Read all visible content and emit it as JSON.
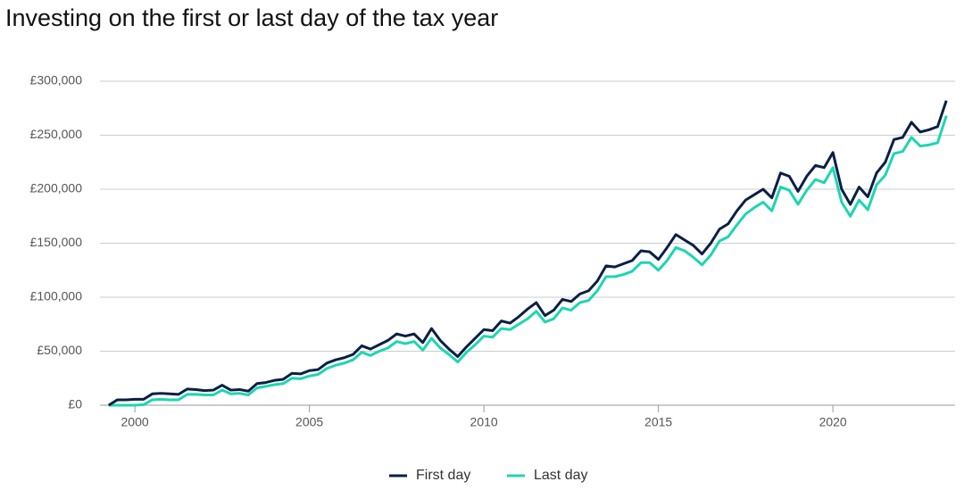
{
  "chart_data": {
    "type": "line",
    "title": "Investing on the first or last day of the tax year",
    "x": [
      1999.25,
      1999.5,
      1999.75,
      2000,
      2000.25,
      2000.5,
      2000.75,
      2001,
      2001.25,
      2001.5,
      2001.75,
      2002,
      2002.25,
      2002.5,
      2002.75,
      2003,
      2003.25,
      2003.5,
      2003.75,
      2004,
      2004.25,
      2004.5,
      2004.75,
      2005,
      2005.25,
      2005.5,
      2005.75,
      2006,
      2006.25,
      2006.5,
      2006.75,
      2007,
      2007.25,
      2007.5,
      2007.75,
      2008,
      2008.25,
      2008.5,
      2008.75,
      2009,
      2009.25,
      2009.5,
      2009.75,
      2010,
      2010.25,
      2010.5,
      2010.75,
      2011,
      2011.25,
      2011.5,
      2011.75,
      2012,
      2012.25,
      2012.5,
      2012.75,
      2013,
      2013.25,
      2013.5,
      2013.75,
      2014,
      2014.25,
      2014.5,
      2014.75,
      2015,
      2015.25,
      2015.5,
      2015.75,
      2016,
      2016.25,
      2016.5,
      2016.75,
      2017,
      2017.25,
      2017.5,
      2017.75,
      2018,
      2018.25,
      2018.5,
      2018.75,
      2019,
      2019.25,
      2019.5,
      2019.75,
      2020,
      2020.25,
      2020.5,
      2020.75,
      2021,
      2021.25,
      2021.5,
      2021.75,
      2022,
      2022.25,
      2022.5,
      2022.75,
      2023,
      2023.25
    ],
    "series": [
      {
        "name": "First day",
        "color": "#0b1f45",
        "values": [
          0,
          5000,
          5000,
          5500,
          5500,
          10500,
          11000,
          10500,
          10000,
          15000,
          14500,
          13500,
          14000,
          18500,
          14000,
          14500,
          13000,
          20000,
          21000,
          23000,
          24000,
          29500,
          29000,
          32000,
          33000,
          39000,
          42000,
          44000,
          47000,
          55000,
          52000,
          56000,
          60000,
          66000,
          64000,
          66000,
          58000,
          71000,
          60000,
          52000,
          45000,
          54000,
          62000,
          70000,
          69000,
          78000,
          76000,
          82000,
          89000,
          95000,
          83000,
          88000,
          98000,
          96000,
          103000,
          106000,
          115000,
          129000,
          128000,
          131000,
          134000,
          143000,
          142000,
          135000,
          146000,
          158000,
          153000,
          148000,
          140000,
          150000,
          163000,
          168000,
          180000,
          190000,
          195000,
          200000,
          192000,
          215000,
          212000,
          198000,
          212000,
          222000,
          220000,
          234000,
          200000,
          186000,
          202000,
          193000,
          215000,
          225000,
          246000,
          248000,
          262000,
          253000,
          255000,
          258000,
          282000
        ]
      },
      {
        "name": "Last day",
        "color": "#1dd6b0",
        "values": [
          0,
          0,
          0,
          0,
          500,
          5000,
          5500,
          5000,
          5000,
          10000,
          10000,
          9500,
          9500,
          14000,
          10500,
          11000,
          9500,
          16000,
          17500,
          19000,
          20000,
          25000,
          24500,
          27000,
          28500,
          34000,
          37000,
          39000,
          42000,
          49000,
          46000,
          50000,
          53000,
          59000,
          57000,
          59000,
          51000,
          62000,
          53000,
          47000,
          40000,
          49000,
          56000,
          64000,
          63000,
          71000,
          70000,
          75000,
          80000,
          87000,
          77000,
          80000,
          90000,
          88000,
          95000,
          97000,
          106000,
          119000,
          119000,
          121000,
          124000,
          132000,
          132000,
          125000,
          134000,
          146000,
          143000,
          137000,
          130000,
          139000,
          152000,
          156000,
          167000,
          177000,
          183000,
          188000,
          180000,
          202000,
          199000,
          186000,
          199000,
          209000,
          206000,
          220000,
          188000,
          175000,
          190000,
          181000,
          204000,
          213000,
          233000,
          235000,
          248000,
          240000,
          241000,
          243000,
          268000
        ]
      }
    ],
    "xlim": [
      1999,
      2023.5
    ],
    "xticks": [
      2000,
      2005,
      2010,
      2015,
      2020
    ],
    "ylim": [
      0,
      300000
    ],
    "yticks": [
      {
        "value": 0,
        "label": "£0"
      },
      {
        "value": 50000,
        "label": "£50,000"
      },
      {
        "value": 100000,
        "label": "£100,000"
      },
      {
        "value": 150000,
        "label": "£150,000"
      },
      {
        "value": 200000,
        "label": "£200,000"
      },
      {
        "value": 250000,
        "label": "£250,000"
      },
      {
        "value": 300000,
        "label": "£300,000"
      }
    ],
    "grid": true,
    "legend": "bottom"
  }
}
